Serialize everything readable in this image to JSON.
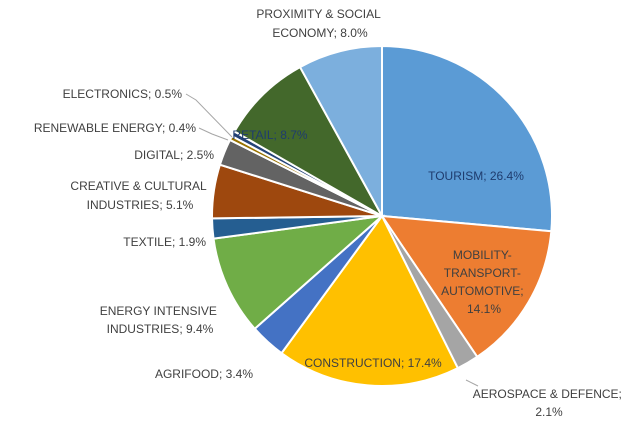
{
  "chart_data": {
    "type": "pie",
    "title": "",
    "legend": "none",
    "slices": [
      {
        "label": "TOURISM; 26.4%",
        "value": 26.4,
        "color": "#5b9bd5"
      },
      {
        "label": "MOBILITY-TRANSPORT-AUTOMOTIVE; 14.1%",
        "value": 14.1,
        "color": "#ed7d31"
      },
      {
        "label": "AEROSPACE & DEFENCE; 2.1%",
        "value": 2.1,
        "color": "#a5a5a5"
      },
      {
        "label": "CONSTRUCTION; 17.4%",
        "value": 17.4,
        "color": "#ffc000"
      },
      {
        "label": "AGRIFOOD; 3.4%",
        "value": 3.4,
        "color": "#4472c4"
      },
      {
        "label": "ENERGY INTENSIVE INDUSTRIES; 9.4%",
        "value": 9.4,
        "color": "#70ad47"
      },
      {
        "label": "TEXTILE; 1.9%",
        "value": 1.9,
        "color": "#255e91"
      },
      {
        "label": "CREATIVE & CULTURAL INDUSTRIES; 5.1%",
        "value": 5.1,
        "color": "#9e480e"
      },
      {
        "label": "DIGITAL; 2.5%",
        "value": 2.5,
        "color": "#636363"
      },
      {
        "label": "RENEWABLE ENERGY; 0.4%",
        "value": 0.4,
        "color": "#997300"
      },
      {
        "label": "ELECTRONICS; 0.5%",
        "value": 0.5,
        "color": "#264478"
      },
      {
        "label": "RETAIL; 8.7%",
        "value": 8.7,
        "color": "#43682b"
      },
      {
        "label": "PROXIMITY & SOCIAL ECONOMY; 8.0%",
        "value": 8.0,
        "color": "#7cafdd"
      }
    ]
  }
}
